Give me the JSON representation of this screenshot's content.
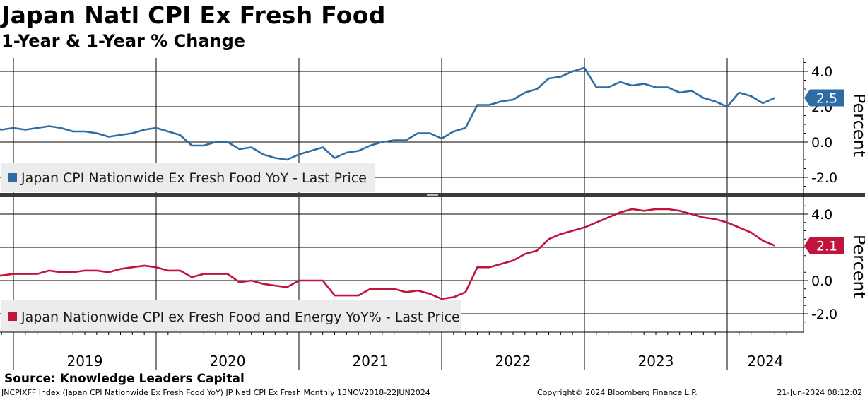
{
  "title": "Japan Natl CPI Ex Fresh Food",
  "subtitle": "1-Year & 1-Year % Change",
  "source": "Source: Knowledge Leaders Capital",
  "footer": {
    "left": "JNCPIXFF Index (Japan CPI Nationwide Ex Fresh Food YoY) JP Natl CPI Ex Fresh  Monthly 13NOV2018-22JUN2024",
    "center": "Copyright© 2024 Bloomberg Finance L.P.",
    "right": "21-Jun-2024 08:12:02"
  },
  "chart_data": {
    "type": "line",
    "x_start": "2018-11",
    "x_end": "2024-05",
    "x_year_labels": [
      "2019",
      "2020",
      "2021",
      "2022",
      "2023",
      "2024"
    ],
    "y_axis_label": "Percent",
    "ylim": [
      -2.5,
      4.5
    ],
    "y_ticks": [
      "4.0",
      "2.0",
      "0.0",
      "-2.0"
    ],
    "y_tick_values": [
      4,
      2,
      0,
      -2
    ],
    "grid": true,
    "legend_placement": "bottom-left",
    "panels": [
      {
        "series": [
          {
            "name": "Japan CPI Nationwide Ex Fresh Food YoY - Last Price",
            "color": "#2e6da4",
            "last_value_label": "2.5",
            "values": [
              0.9,
              0.7,
              0.8,
              0.7,
              0.8,
              0.9,
              0.8,
              0.6,
              0.6,
              0.5,
              0.3,
              0.4,
              0.5,
              0.7,
              0.8,
              0.6,
              0.4,
              -0.2,
              -0.2,
              0.0,
              0.0,
              -0.4,
              -0.3,
              -0.7,
              -0.9,
              -1.0,
              -0.7,
              -0.5,
              -0.3,
              -0.9,
              -0.6,
              -0.5,
              -0.2,
              0.0,
              0.1,
              0.1,
              0.5,
              0.5,
              0.2,
              0.6,
              0.8,
              2.1,
              2.1,
              2.3,
              2.4,
              2.8,
              3.0,
              3.6,
              3.7,
              4.0,
              4.2,
              3.1,
              3.1,
              3.4,
              3.2,
              3.3,
              3.1,
              3.1,
              2.8,
              2.9,
              2.5,
              2.3,
              2.0,
              2.8,
              2.6,
              2.2,
              2.5
            ]
          }
        ]
      },
      {
        "series": [
          {
            "name": "Japan Nationwide CPI ex Fresh Food and Energy YoY% - Last Price",
            "color": "#c0143c",
            "last_value_label": "2.1",
            "values": [
              0.3,
              0.3,
              0.4,
              0.4,
              0.4,
              0.6,
              0.5,
              0.5,
              0.6,
              0.6,
              0.5,
              0.7,
              0.8,
              0.9,
              0.8,
              0.6,
              0.6,
              0.2,
              0.4,
              0.4,
              0.4,
              -0.1,
              0.0,
              -0.2,
              -0.3,
              -0.4,
              0.0,
              0.0,
              0.0,
              -0.9,
              -0.9,
              -0.9,
              -0.5,
              -0.5,
              -0.5,
              -0.7,
              -0.6,
              -0.8,
              -1.1,
              -1.0,
              -0.7,
              0.8,
              0.8,
              1.0,
              1.2,
              1.6,
              1.8,
              2.5,
              2.8,
              3.0,
              3.2,
              3.5,
              3.8,
              4.1,
              4.3,
              4.2,
              4.3,
              4.3,
              4.2,
              4.0,
              3.8,
              3.7,
              3.5,
              3.2,
              2.9,
              2.4,
              2.1
            ]
          }
        ]
      }
    ]
  }
}
